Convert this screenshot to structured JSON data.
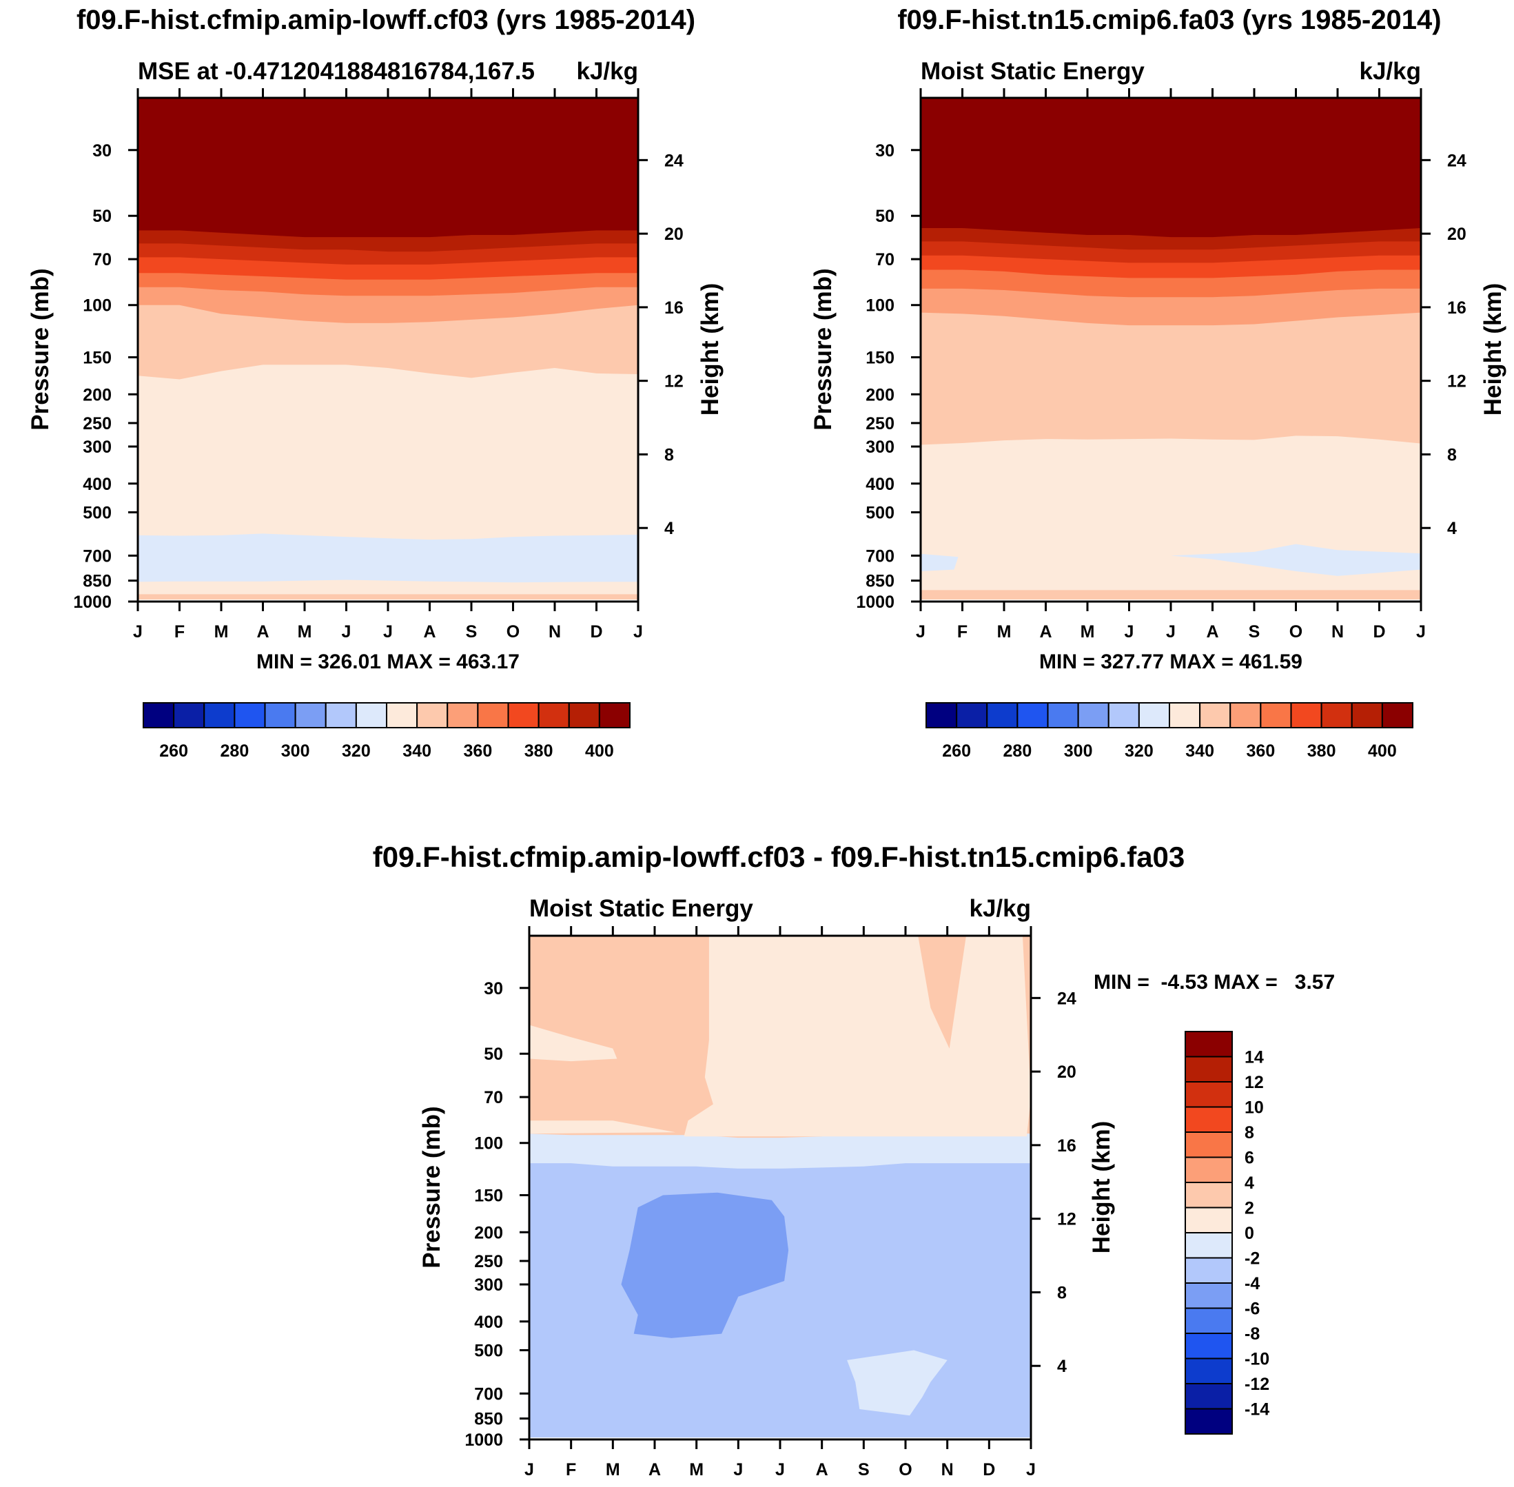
{
  "months": [
    "J",
    "F",
    "M",
    "A",
    "M",
    "J",
    "J",
    "A",
    "S",
    "O",
    "N",
    "D",
    "J"
  ],
  "pressure_ticks": [
    30,
    50,
    70,
    100,
    150,
    200,
    250,
    300,
    400,
    500,
    700,
    850,
    1000
  ],
  "height_ticks": [
    24,
    20,
    16,
    12,
    8,
    4
  ],
  "axis_labels": {
    "pressure": "Pressure (mb)",
    "height": "Height (km)"
  },
  "colorbar_abs": {
    "colors": [
      "#000080",
      "#0a1fa6",
      "#0d3ccd",
      "#1f55f0",
      "#4a7af0",
      "#7b9ef4",
      "#b2c8fb",
      "#dde9fb",
      "#fdeadb",
      "#fdc9ad",
      "#fc9f78",
      "#f97647",
      "#f2481f",
      "#d2300f",
      "#b51f05",
      "#8b0000"
    ],
    "labels": [
      "260",
      "280",
      "300",
      "320",
      "340",
      "360",
      "380",
      "400"
    ]
  },
  "colorbar_diff": {
    "colors": [
      "#8b0000",
      "#b51f05",
      "#d2300f",
      "#f2481f",
      "#f97647",
      "#fc9f78",
      "#fdc9ad",
      "#fdeadb",
      "#dde9fb",
      "#b2c8fb",
      "#7b9ef4",
      "#4a7af0",
      "#1f55f0",
      "#0d3ccd",
      "#0a1fa6",
      "#000080"
    ],
    "labels": [
      "14",
      "12",
      "10",
      "8",
      "6",
      "4",
      "2",
      "0",
      "-2",
      "-4",
      "-6",
      "-8",
      "-10",
      "-12",
      "-14"
    ]
  },
  "chart_data": [
    {
      "type": "heatmap",
      "title": "f09.F-hist.cfmip.amip-lowff.cf03 (yrs 1985-2014)",
      "subtitle_left": "MSE at -0.4712041884816784,167.5",
      "subtitle_right": "kJ/kg",
      "xlabel": "",
      "ylabel": "Pressure (mb)",
      "y2label": "Height (km)",
      "min_max": "MIN = 326.01 MAX = 463.17",
      "bands": [
        {
          "value": "400+",
          "color": "#8b0000",
          "upper_mb": [
            20,
            20,
            20,
            20,
            20,
            20,
            20,
            20,
            20,
            20,
            20,
            20,
            20
          ]
        },
        {
          "value": "390-400",
          "color": "#b51f05",
          "upper_mb": [
            56,
            56,
            57,
            58,
            59,
            59,
            59,
            59,
            58,
            58,
            57,
            56,
            56
          ]
        },
        {
          "value": "380-390",
          "color": "#d2300f",
          "upper_mb": [
            62,
            62,
            63,
            64,
            65,
            65,
            66,
            66,
            65,
            64,
            63,
            62,
            62
          ]
        },
        {
          "value": "370-380",
          "color": "#f2481f",
          "upper_mb": [
            69,
            69,
            70,
            71,
            72,
            73,
            73,
            73,
            72,
            71,
            70,
            69,
            69
          ]
        },
        {
          "value": "360-370",
          "color": "#f97647",
          "upper_mb": [
            78,
            78,
            79,
            80,
            81,
            82,
            82,
            82,
            81,
            80,
            79,
            78,
            78
          ]
        },
        {
          "value": "350-360",
          "color": "#fc9f78",
          "upper_mb": [
            87,
            87,
            89,
            90,
            92,
            93,
            93,
            93,
            92,
            91,
            89,
            87,
            87
          ]
        },
        {
          "value": "340-350",
          "color": "#fdc9ad",
          "upper_mb": [
            100,
            100,
            107,
            110,
            113,
            115,
            115,
            114,
            112,
            110,
            107,
            103,
            100
          ]
        },
        {
          "value": "330-340",
          "color": "#fdeadb",
          "upper_mb": [
            173,
            178,
            167,
            159,
            159,
            159,
            163,
            170,
            176,
            169,
            163,
            170,
            171
          ]
        },
        {
          "value": "320-330",
          "color": "#dde9fb",
          "upper_mb": [
            598,
            600,
            598,
            590,
            598,
            605,
            612,
            618,
            615,
            605,
            600,
            598,
            595
          ]
        },
        {
          "value": "330-340",
          "color": "#fdeadb",
          "upper_mb": [
            858,
            855,
            855,
            855,
            850,
            845,
            850,
            855,
            858,
            862,
            860,
            858,
            858
          ]
        },
        {
          "value": "340-350",
          "color": "#fdc9ad",
          "upper_mb": [
            945,
            945,
            945,
            945,
            945,
            945,
            945,
            945,
            945,
            945,
            945,
            945,
            945
          ]
        }
      ]
    },
    {
      "type": "heatmap",
      "title": "f09.F-hist.tn15.cmip6.fa03 (yrs 1985-2014)",
      "subtitle_left": "Moist Static Energy",
      "subtitle_right": "kJ/kg",
      "xlabel": "",
      "ylabel": "Pressure (mb)",
      "y2label": "Height (km)",
      "min_max": "MIN = 327.77 MAX = 461.59",
      "bands": [
        {
          "value": "400+",
          "color": "#8b0000",
          "upper_mb": [
            20,
            20,
            20,
            20,
            20,
            20,
            20,
            20,
            20,
            20,
            20,
            20,
            20
          ]
        },
        {
          "value": "390-400",
          "color": "#b51f05",
          "upper_mb": [
            55,
            55,
            56,
            57,
            58,
            58,
            59,
            59,
            58,
            58,
            57,
            56,
            55
          ]
        },
        {
          "value": "380-390",
          "color": "#d2300f",
          "upper_mb": [
            61,
            61,
            62,
            63,
            64,
            65,
            65,
            65,
            64,
            63,
            62,
            61,
            61
          ]
        },
        {
          "value": "370-380",
          "color": "#f2481f",
          "upper_mb": [
            68,
            68,
            69,
            70,
            71,
            72,
            72,
            72,
            71,
            70,
            69,
            68,
            68
          ]
        },
        {
          "value": "360-370",
          "color": "#f97647",
          "upper_mb": [
            76,
            76,
            77,
            79,
            80,
            81,
            81,
            81,
            80,
            79,
            77,
            76,
            76
          ]
        },
        {
          "value": "350-360",
          "color": "#fc9f78",
          "upper_mb": [
            88,
            88,
            89,
            91,
            93,
            94,
            94,
            94,
            93,
            91,
            89,
            88,
            88
          ]
        },
        {
          "value": "340-350",
          "color": "#fdc9ad",
          "upper_mb": [
            106,
            107,
            109,
            112,
            115,
            117,
            117,
            117,
            116,
            113,
            110,
            108,
            106
          ]
        },
        {
          "value": "330-340",
          "color": "#fdeadb",
          "upper_mb": [
            296,
            292,
            286,
            283,
            284,
            283,
            282,
            284,
            285,
            276,
            277,
            284,
            293
          ]
        }
      ],
      "patches": [
        {
          "value": "320-330",
          "color": "#dde9fb",
          "region": "low-left",
          "pts": [
            [
              0,
              690
            ],
            [
              0.9,
              707
            ],
            [
              0.8,
              780
            ],
            [
              0,
              790
            ]
          ]
        },
        {
          "value": "320-330",
          "color": "#dde9fb",
          "region": "low-right",
          "pts": [
            [
              6,
              700
            ],
            [
              8,
              680
            ],
            [
              9,
              640
            ],
            [
              10,
              670
            ],
            [
              12,
              688
            ],
            [
              12,
              780
            ],
            [
              10,
              820
            ],
            [
              9,
              790
            ],
            [
              7,
              720
            ]
          ]
        },
        {
          "value": "340-350",
          "color": "#fdc9ad",
          "region": "surface",
          "pts": [
            [
              0,
              915
            ],
            [
              12,
              915
            ],
            [
              12,
              985
            ],
            [
              0,
              985
            ]
          ]
        }
      ]
    },
    {
      "type": "heatmap",
      "title": "f09.F-hist.cfmip.amip-lowff.cf03 - f09.F-hist.tn15.cmip6.fa03",
      "subtitle_left": "Moist Static Energy",
      "subtitle_right": "kJ/kg",
      "xlabel": "",
      "ylabel": "Pressure (mb)",
      "y2label": "Height (km)",
      "min_max": "MIN =  -4.53 MAX =   3.57",
      "bands": [
        {
          "value": "2-4",
          "color": "#fdc9ad",
          "upper_mb": [
            20,
            20,
            20,
            20,
            20,
            20,
            20,
            20,
            20,
            20,
            20,
            20,
            20
          ]
        },
        {
          "value": "0-2 (-2-0)",
          "color": "#dde9fb",
          "upper_mb": [
            93,
            94,
            94,
            94,
            94,
            96,
            96,
            95,
            88,
            88,
            90,
            92,
            93
          ]
        },
        {
          "value": "-4 - -2",
          "color": "#b2c8fb",
          "upper_mb": [
            117,
            117,
            120,
            120,
            120,
            122,
            122,
            121,
            120,
            117,
            117,
            117,
            117
          ]
        }
      ],
      "patches": [
        {
          "value": "0-2",
          "color": "#fdeadb",
          "region": "upper-middle",
          "pts": [
            [
              4.3,
              20
            ],
            [
              9.3,
              20
            ],
            [
              9.6,
              35
            ],
            [
              10.05,
              48
            ],
            [
              10.45,
              20
            ],
            [
              11.8,
              20
            ],
            [
              12,
              70
            ],
            [
              11.9,
              95
            ],
            [
              3.7,
              95
            ],
            [
              3.8,
              84
            ],
            [
              4.4,
              74
            ],
            [
              4.2,
              60
            ],
            [
              4.3,
              45
            ]
          ]
        },
        {
          "value": "0-2",
          "color": "#fdeadb",
          "region": "upper-left-lobe",
          "pts": [
            [
              0,
              40
            ],
            [
              1,
              44
            ],
            [
              2,
              48
            ],
            [
              2.1,
              52
            ],
            [
              1,
              53
            ],
            [
              0,
              52
            ]
          ]
        },
        {
          "value": "0-2",
          "color": "#fdeadb",
          "region": "mid-level",
          "pts": [
            [
              0,
              84
            ],
            [
              2,
              84
            ],
            [
              3.5,
              92
            ],
            [
              0,
              93
            ]
          ]
        },
        {
          "value": "-6 - -4",
          "color": "#7b9ef4",
          "region": "upper-trop-minimum",
          "pts": [
            [
              2.6,
              165
            ],
            [
              3.2,
              150
            ],
            [
              4.5,
              147
            ],
            [
              5.8,
              156
            ],
            [
              6.1,
              177
            ],
            [
              6.2,
              230
            ],
            [
              6.1,
              292
            ],
            [
              5,
              330
            ],
            [
              4.6,
              440
            ],
            [
              3.4,
              455
            ],
            [
              2.5,
              440
            ],
            [
              2.6,
              380
            ],
            [
              2.2,
              300
            ],
            [
              2.4,
              230
            ]
          ]
        },
        {
          "value": "-2-0",
          "color": "#dde9fb",
          "region": "lower-trop",
          "pts": [
            [
              7.6,
              540
            ],
            [
              9.2,
              500
            ],
            [
              10.0,
              540
            ],
            [
              9.6,
              640
            ],
            [
              9.4,
              720
            ],
            [
              9.1,
              830
            ],
            [
              7.9,
              790
            ],
            [
              7.8,
              640
            ]
          ]
        }
      ]
    }
  ]
}
